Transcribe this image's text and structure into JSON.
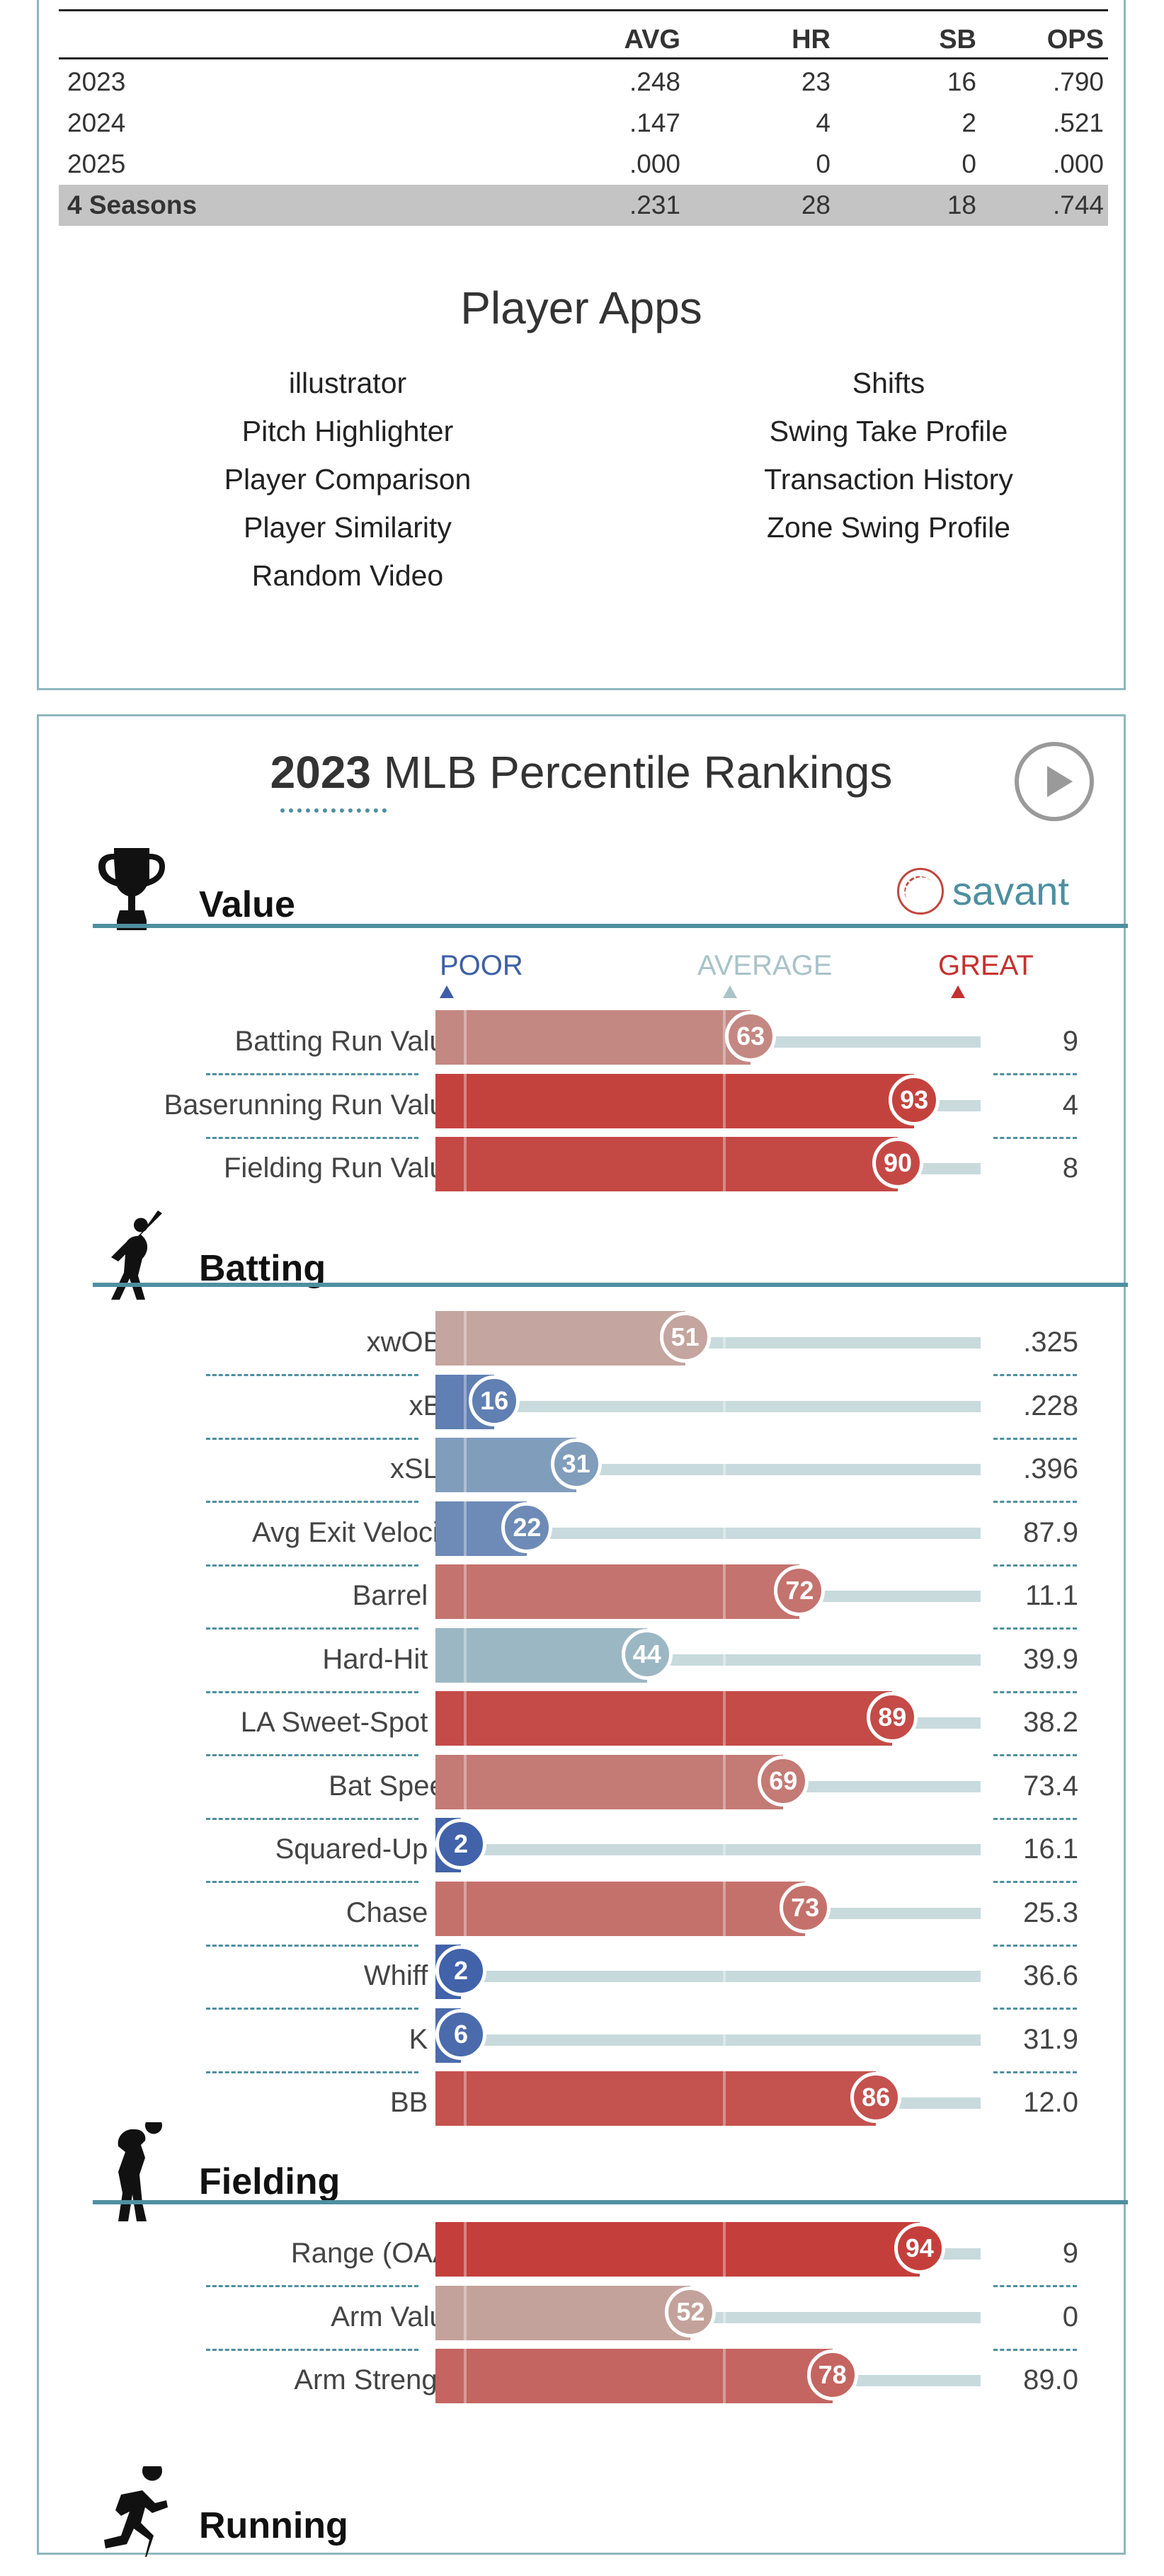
{
  "stats_table": {
    "headers": [
      "",
      "AVG",
      "HR",
      "SB",
      "OPS"
    ],
    "rows": [
      [
        "2023",
        ".248",
        "23",
        "16",
        ".790"
      ],
      [
        "2024",
        ".147",
        "4",
        "2",
        ".521"
      ],
      [
        "2025",
        ".000",
        "0",
        "0",
        ".000"
      ]
    ],
    "total": [
      "4 Seasons",
      ".231",
      "28",
      "18",
      ".744"
    ]
  },
  "player_apps": {
    "title": "Player Apps",
    "left": [
      "illustrator",
      "Pitch Highlighter",
      "Player Comparison",
      "Player Similarity",
      "Random Video"
    ],
    "right": [
      "Shifts",
      "Swing Take Profile",
      "Transaction History",
      "Zone Swing Profile"
    ]
  },
  "percentile": {
    "title_year": "2023",
    "title_rest": "MLB Percentile Rankings",
    "brand": "savant",
    "legend": {
      "poor": "POOR",
      "average": "AVERAGE",
      "great": "GREAT"
    },
    "colors": {
      "poor": "#3e5fa8",
      "average": "#a9c3c8",
      "great": "#c4312e",
      "line": "#4e8fa0"
    },
    "sections": [
      {
        "name": "Value",
        "icon": "trophy-icon",
        "metrics": [
          {
            "label": "Batting Run Value",
            "percentile": 63,
            "value": "9"
          },
          {
            "label": "Baserunning Run Value",
            "percentile": 93,
            "value": "4"
          },
          {
            "label": "Fielding Run Value",
            "percentile": 90,
            "value": "8"
          }
        ]
      },
      {
        "name": "Batting",
        "icon": "batter-icon",
        "metrics": [
          {
            "label": "xwOBA",
            "percentile": 51,
            "value": ".325"
          },
          {
            "label": "xBA",
            "percentile": 16,
            "value": ".228"
          },
          {
            "label": "xSLG",
            "percentile": 31,
            "value": ".396"
          },
          {
            "label": "Avg Exit Velocity",
            "percentile": 22,
            "value": "87.9"
          },
          {
            "label": "Barrel %",
            "percentile": 72,
            "value": "11.1"
          },
          {
            "label": "Hard-Hit %",
            "percentile": 44,
            "value": "39.9"
          },
          {
            "label": "LA Sweet-Spot %",
            "percentile": 89,
            "value": "38.2"
          },
          {
            "label": "Bat Speed",
            "percentile": 69,
            "value": "73.4"
          },
          {
            "label": "Squared-Up %",
            "percentile": 2,
            "value": "16.1"
          },
          {
            "label": "Chase %",
            "percentile": 73,
            "value": "25.3"
          },
          {
            "label": "Whiff %",
            "percentile": 2,
            "value": "36.6"
          },
          {
            "label": "K %",
            "percentile": 6,
            "value": "31.9"
          },
          {
            "label": "BB %",
            "percentile": 86,
            "value": "12.0"
          }
        ]
      },
      {
        "name": "Fielding",
        "icon": "fielder-icon",
        "metrics": [
          {
            "label": "Range (OAA)",
            "percentile": 94,
            "value": "9"
          },
          {
            "label": "Arm Value",
            "percentile": 52,
            "value": "0"
          },
          {
            "label": "Arm Strength",
            "percentile": 78,
            "value": "89.0"
          }
        ]
      },
      {
        "name": "Running",
        "icon": "runner-icon",
        "metrics": []
      }
    ]
  }
}
